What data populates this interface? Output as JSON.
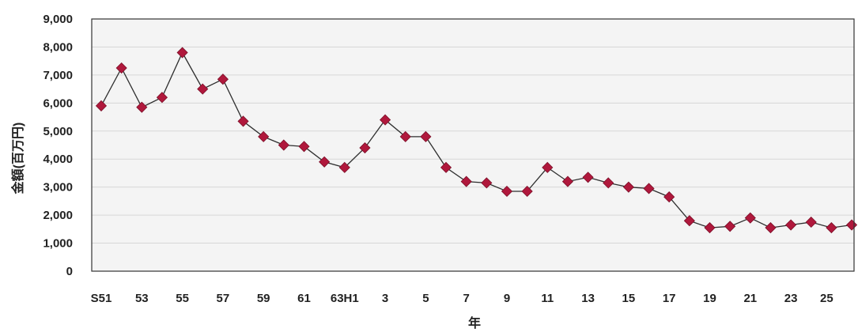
{
  "chart_data": {
    "type": "line",
    "xlabel": "年",
    "ylabel": "金額(百万円)",
    "ylim": [
      0,
      9000
    ],
    "grid": true,
    "legend": "none",
    "yticks": [
      "0",
      "1,000",
      "2,000",
      "3,000",
      "4,000",
      "5,000",
      "6,000",
      "7,000",
      "8,000",
      "9,000"
    ],
    "x": [
      "S51",
      "52",
      "53",
      "54",
      "55",
      "56",
      "57",
      "58",
      "59",
      "60",
      "61",
      "62",
      "63",
      "H1",
      "2",
      "3",
      "4",
      "5",
      "6",
      "7",
      "8",
      "9",
      "10",
      "11",
      "12",
      "13",
      "14",
      "15",
      "16",
      "17",
      "18",
      "19",
      "20",
      "21",
      "22",
      "23",
      "24",
      "25"
    ],
    "xtick_labels": [
      "S51",
      "53",
      "55",
      "57",
      "59",
      "61",
      "63H1",
      "3",
      "5",
      "7",
      "9",
      "11",
      "13",
      "15",
      "17",
      "19",
      "21",
      "23",
      "25"
    ],
    "series": [
      {
        "values": [
          5900,
          7250,
          5850,
          6200,
          7800,
          6500,
          6850,
          5350,
          4800,
          4500,
          4450,
          3900,
          3700,
          4400,
          5400,
          4800,
          4800,
          3700,
          3200,
          3150,
          2850,
          2850,
          3700,
          3200,
          3350,
          3150,
          3000,
          2950,
          2650,
          1800,
          1550,
          1600,
          1900,
          1550,
          1650,
          1750,
          1550,
          1650
        ]
      }
    ],
    "colors": {
      "marker": "#b0183c",
      "marker_stroke": "#7a0f28",
      "line": "#2e2e2e",
      "grid": "#d7d7d7",
      "plot_background": "#f4f4f4",
      "frame": "#333333"
    }
  }
}
